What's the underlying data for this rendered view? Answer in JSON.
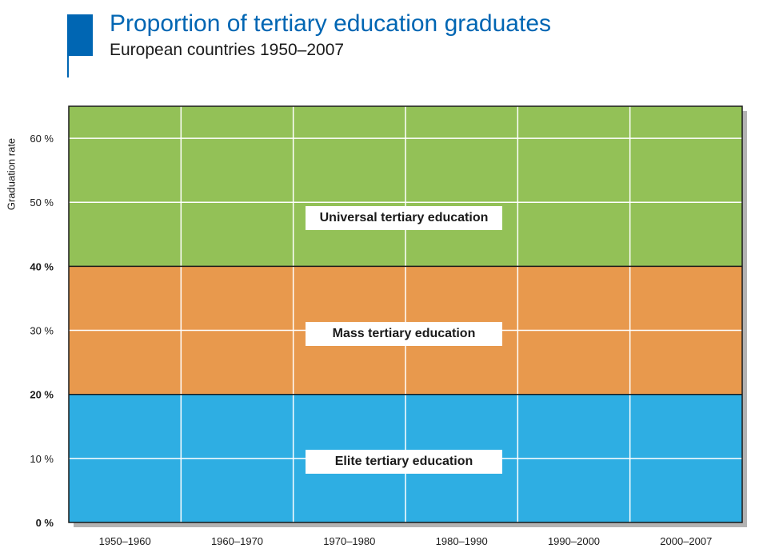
{
  "header": {
    "title": "Proportion of tertiary education graduates",
    "subtitle": "European countries 1950–2007",
    "accent_color": "#0066b3"
  },
  "chart_data": {
    "type": "area",
    "title": "Proportion of tertiary education graduates",
    "subtitle": "European countries 1950–2007",
    "xlabel": "",
    "ylabel": "Graduation rate",
    "categories": [
      "1950–1960",
      "1960–1970",
      "1970–1980",
      "1980–1990",
      "1990–2000",
      "2000–2007"
    ],
    "ylim": [
      0,
      65
    ],
    "yticks": [
      {
        "value": 0,
        "label": "0 %",
        "bold": true
      },
      {
        "value": 10,
        "label": "10 %",
        "bold": false
      },
      {
        "value": 20,
        "label": "20 %",
        "bold": true
      },
      {
        "value": 30,
        "label": "30 %",
        "bold": false
      },
      {
        "value": 40,
        "label": "40 %",
        "bold": true
      },
      {
        "value": 50,
        "label": "50 %",
        "bold": false
      },
      {
        "value": 60,
        "label": "60 %",
        "bold": false
      }
    ],
    "bands": [
      {
        "name": "Elite tertiary education",
        "from": 0,
        "to": 20,
        "color": "#2eaee3"
      },
      {
        "name": "Mass tertiary education",
        "from": 20,
        "to": 40,
        "color": "#e8994d"
      },
      {
        "name": "Universal tertiary education",
        "from": 40,
        "to": 65,
        "color": "#93c157"
      }
    ],
    "grid": true,
    "legend": "none"
  }
}
